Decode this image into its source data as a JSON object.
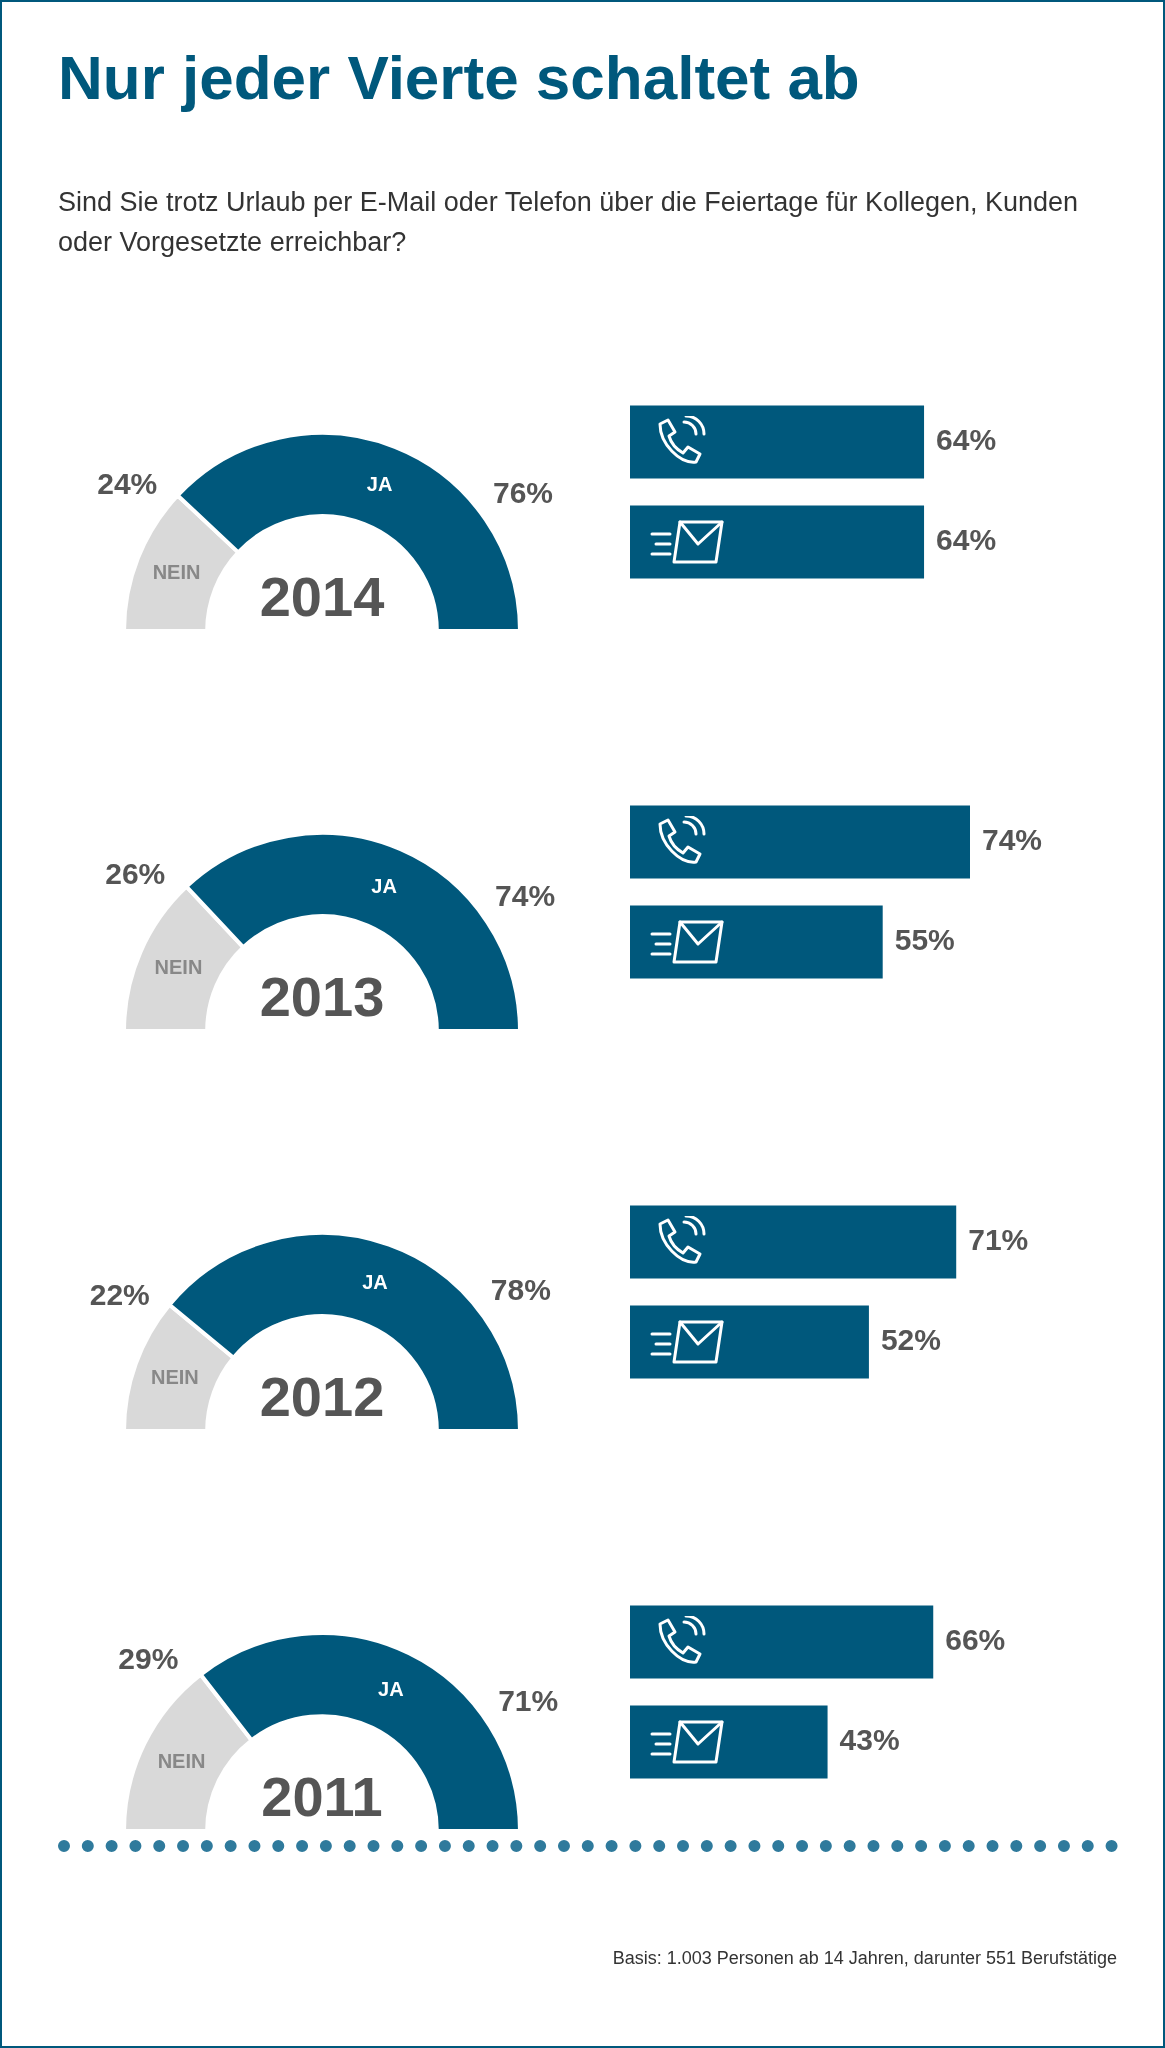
{
  "chart_data": [
    {
      "type": "other",
      "title": "Nur jeder Vierte schaltet ab",
      "subtitle": "Sind Sie trotz Urlaub per E-Mail oder Telefon über die Feiertage für Kollegen, Kunden oder Vorgesetzte erreichbar?",
      "annotations": [
        "Basis: 1.003 Personen ab 14 Jahren, darunter 551 Berufstätige"
      ]
    },
    {
      "type": "donut",
      "title": "2014",
      "categories": [
        "NEIN",
        "JA"
      ],
      "values": [
        24,
        76
      ],
      "colors": [
        "#d9d9d9",
        "#00587c"
      ],
      "value_labels": [
        "24%",
        "76%"
      ]
    },
    {
      "type": "bar",
      "orientation": "horizontal",
      "categories": [
        null,
        null
      ],
      "values": [
        64,
        64
      ],
      "color": "#00587c",
      "tick_labels": false,
      "value_labels": [
        "64%",
        "64%"
      ]
    },
    {
      "type": "donut",
      "title": "2013",
      "categories": [
        "NEIN",
        "JA"
      ],
      "values": [
        26,
        74
      ],
      "colors": [
        "#d9d9d9",
        "#00587c"
      ],
      "value_labels": [
        "26%",
        "74%"
      ]
    },
    {
      "type": "bar",
      "orientation": "horizontal",
      "categories": [
        null,
        null
      ],
      "values": [
        74,
        55
      ],
      "color": "#00587c",
      "tick_labels": false,
      "value_labels": [
        "74%",
        "55%"
      ]
    },
    {
      "type": "donut",
      "title": "2012",
      "categories": [
        "NEIN",
        "JA"
      ],
      "values": [
        22,
        78
      ],
      "colors": [
        "#d9d9d9",
        "#00587c"
      ],
      "value_labels": [
        "22%",
        "78%"
      ]
    },
    {
      "type": "bar",
      "orientation": "horizontal",
      "categories": [
        null,
        null
      ],
      "values": [
        71,
        52
      ],
      "color": "#00587c",
      "tick_labels": false,
      "value_labels": [
        "71%",
        "52%"
      ]
    },
    {
      "type": "donut",
      "title": "2011",
      "categories": [
        "NEIN",
        "JA"
      ],
      "values": [
        29,
        71
      ],
      "colors": [
        "#d9d9d9",
        "#00587c"
      ],
      "value_labels": [
        "29%",
        "71%"
      ]
    },
    {
      "type": "bar",
      "orientation": "horizontal",
      "categories": [
        null,
        null
      ],
      "values": [
        66,
        43
      ],
      "color": "#00587c",
      "tick_labels": false,
      "value_labels": [
        "66%",
        "43%"
      ]
    }
  ]
}
